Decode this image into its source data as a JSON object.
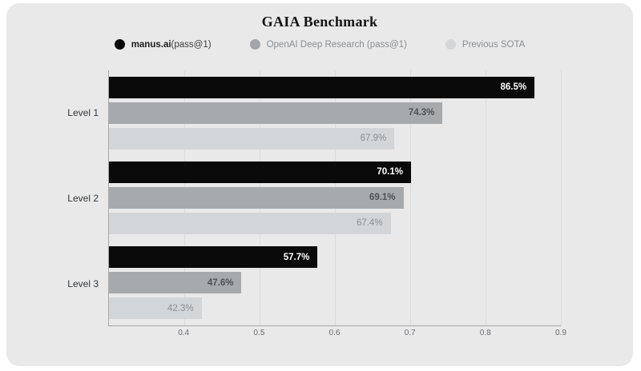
{
  "title": "GAIA Benchmark",
  "legend": [
    {
      "name": "manus.ai",
      "suffix": " (pass@1)",
      "color": "#0a0a0a"
    },
    {
      "name": "OpenAI Deep Research (pass@1)",
      "suffix": "",
      "color": "#a2a5a9"
    },
    {
      "name": "Previous SOTA",
      "suffix": "",
      "color": "#d4d7da"
    }
  ],
  "colors": {
    "card_background": "#e9e9ea",
    "page_background": "#ffffff",
    "axis": "#a6a8aa",
    "gridline": "#dcdcdd"
  },
  "chart_data": {
    "type": "bar",
    "orientation": "horizontal",
    "title": "GAIA Benchmark",
    "categories": [
      "Level 1",
      "Level 2",
      "Level 3"
    ],
    "series": [
      {
        "name": "manus.ai (pass@1)",
        "key": "black",
        "color": "#0a0a0a",
        "values": [
          86.5,
          70.1,
          57.7
        ],
        "value_labels": [
          "86.5%",
          "70.1%",
          "57.7%"
        ]
      },
      {
        "name": "OpenAI Deep Research (pass@1)",
        "key": "gray",
        "color": "#a7aaad",
        "values": [
          74.3,
          69.1,
          47.6
        ],
        "value_labels": [
          "74.3%",
          "69.1%",
          "47.6%"
        ]
      },
      {
        "name": "Previous SOTA",
        "key": "light",
        "color": "#d3d6d9",
        "values": [
          67.9,
          67.4,
          42.3
        ],
        "value_labels": [
          "67.9%",
          "67.4%",
          "42.3%"
        ]
      }
    ],
    "xlim": [
      0.3,
      0.9
    ],
    "x_ticks": [
      {
        "value": 0.4,
        "label": "0.4"
      },
      {
        "value": 0.5,
        "label": "0.5"
      },
      {
        "value": 0.6,
        "label": "0.6"
      },
      {
        "value": 0.7,
        "label": "0.7"
      },
      {
        "value": 0.8,
        "label": "0.8"
      },
      {
        "value": 0.9,
        "label": "0.9"
      }
    ],
    "grid": "vertical",
    "legend_position": "top"
  }
}
